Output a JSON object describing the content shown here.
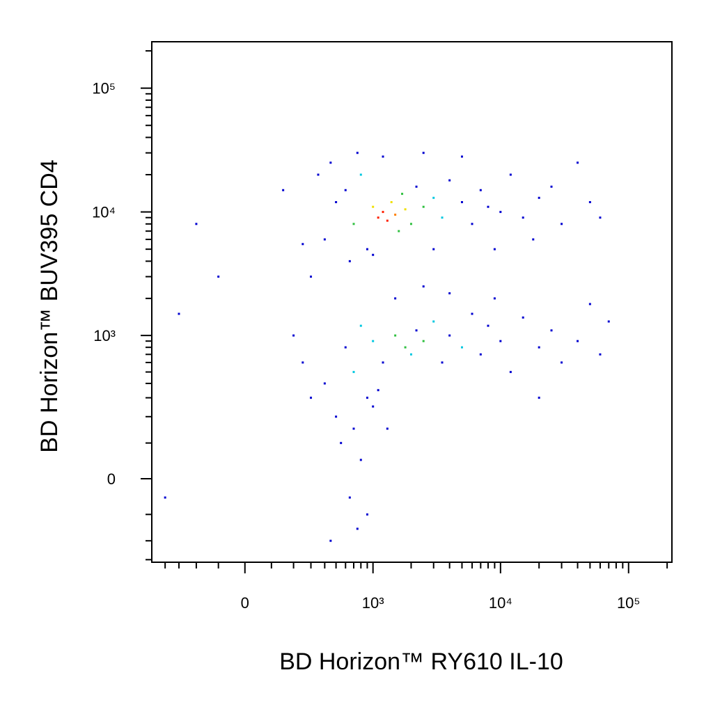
{
  "chart_data": {
    "type": "scatter",
    "x_label": "BD Horizon™ RY610  IL-10",
    "y_label": "BD Horizon™ BUV395 CD4",
    "xscale": "biex",
    "xscale_width": 202,
    "yscale": "biex",
    "yscale_width": 140,
    "xlim": [
      -520,
      218000
    ],
    "ylim": [
      -316,
      237000
    ],
    "xticks": [
      0,
      {
        "value": 1000,
        "label": "10³"
      },
      {
        "value": 10000,
        "label": "10⁴"
      },
      {
        "value": 100000,
        "label": "10⁵"
      }
    ],
    "yticks": [
      0,
      {
        "value": 1000,
        "label": "10³"
      },
      {
        "value": 10000,
        "label": "10⁴"
      },
      {
        "value": 100000,
        "label": "10⁵"
      }
    ],
    "xminor_ticks": [
      -400,
      -300,
      -200,
      -100,
      100,
      200,
      300,
      400,
      500,
      600,
      700,
      800,
      900,
      2000,
      3000,
      4000,
      5000,
      6000,
      7000,
      8000,
      9000,
      20000,
      30000,
      40000,
      50000,
      60000,
      70000,
      80000,
      90000,
      200000
    ],
    "yminor_ticks": [
      -300,
      -200,
      -100,
      100,
      200,
      300,
      400,
      500,
      600,
      700,
      800,
      900,
      2000,
      3000,
      4000,
      5000,
      6000,
      7000,
      8000,
      9000,
      20000,
      30000,
      40000,
      50000,
      60000,
      70000,
      80000,
      90000,
      200000
    ],
    "x": [
      400,
      500,
      600,
      700,
      800,
      900,
      1000,
      1100,
      1200,
      1300,
      1400,
      1500,
      1600,
      1700,
      1800,
      2000,
      2200,
      2500,
      3000,
      3500,
      4000,
      5000,
      6000,
      7000,
      8000,
      10000,
      12000,
      15000,
      20000,
      25000,
      30000,
      40000,
      50000,
      300,
      350,
      450,
      650,
      750,
      1200,
      2500,
      5000,
      9000,
      18000,
      60000,
      -200,
      -100,
      150,
      250,
      1000,
      3000,
      600,
      700,
      800,
      900,
      1000,
      1200,
      1500,
      1800,
      2000,
      2200,
      2500,
      3000,
      3500,
      4000,
      5000,
      6000,
      7000,
      8000,
      10000,
      12000,
      15000,
      20000,
      25000,
      30000,
      40000,
      50000,
      60000,
      400,
      500,
      550,
      650,
      700,
      800,
      900,
      1000,
      300,
      250,
      200,
      1500,
      2500,
      4000,
      9000,
      450,
      750,
      1100,
      1300,
      -300,
      -400,
      20000,
      70000
    ],
    "values": [
      6000,
      12000,
      15000,
      8000,
      20000,
      5000,
      11000,
      9000,
      10000,
      8500,
      12000,
      9500,
      7000,
      14000,
      10500,
      8000,
      16000,
      11000,
      13000,
      9000,
      18000,
      12000,
      8000,
      15000,
      11000,
      10000,
      20000,
      9000,
      13000,
      16000,
      8000,
      25000,
      12000,
      3000,
      20000,
      25000,
      4000,
      30000,
      28000,
      30000,
      28000,
      5000,
      6000,
      9000,
      8000,
      3000,
      15000,
      5500,
      4500,
      5000,
      800,
      500,
      1200,
      300,
      900,
      600,
      1000,
      800,
      700,
      1100,
      900,
      1300,
      600,
      1000,
      800,
      1500,
      700,
      1200,
      900,
      500,
      1400,
      800,
      1100,
      600,
      900,
      1800,
      700,
      400,
      200,
      100,
      -50,
      150,
      50,
      -100,
      250,
      300,
      600,
      1000,
      2000,
      2500,
      2200,
      2000,
      -200,
      -150,
      350,
      150,
      1500,
      -50,
      300,
      1300
    ],
    "colors": [
      "#0000d0",
      "#0000d0",
      "#0000d0",
      "#30c040",
      "#00c8e0",
      "#0000d0",
      "#f0e000",
      "#ff2000",
      "#ff2000",
      "#ff2000",
      "#f0e000",
      "#ff8000",
      "#30c040",
      "#30c040",
      "#f0e000",
      "#30c040",
      "#0000d0",
      "#30c040",
      "#00c8e0",
      "#00c8e0",
      "#0000d0",
      "#0000d0",
      "#0000d0",
      "#0000d0",
      "#0000d0",
      "#0000d0",
      "#0000d0",
      "#0000d0",
      "#0000d0",
      "#0000d0",
      "#0000d0",
      "#0000d0",
      "#0000d0",
      "#0000d0",
      "#0000d0",
      "#0000d0",
      "#0000d0",
      "#0000d0",
      "#0000d0",
      "#0000d0",
      "#0000d0",
      "#0000d0",
      "#0000d0",
      "#0000d0",
      "#0000d0",
      "#0000d0",
      "#0000d0",
      "#0000d0",
      "#0000d0",
      "#0000d0",
      "#0000d0",
      "#00c8e0",
      "#00c8e0",
      "#0000d0",
      "#00c8e0",
      "#0000d0",
      "#30c040",
      "#30c040",
      "#00c8e0",
      "#0000d0",
      "#30c040",
      "#00c8e0",
      "#0000d0",
      "#0000d0",
      "#00c8e0",
      "#0000d0",
      "#0000d0",
      "#0000d0",
      "#0000d0",
      "#0000d0",
      "#0000d0",
      "#0000d0",
      "#0000d0",
      "#0000d0",
      "#0000d0",
      "#0000d0",
      "#0000d0",
      "#0000d0",
      "#0000d0",
      "#0000d0",
      "#0000d0",
      "#0000d0",
      "#0000d0",
      "#0000d0",
      "#0000d0",
      "#0000d0",
      "#0000d0",
      "#0000d0",
      "#0000d0",
      "#0000d0",
      "#0000d0",
      "#0000d0",
      "#0000d0",
      "#0000d0",
      "#0000d0",
      "#0000d0",
      "#0000d0",
      "#0000d0",
      "#0000d0",
      "#0000d0"
    ]
  }
}
